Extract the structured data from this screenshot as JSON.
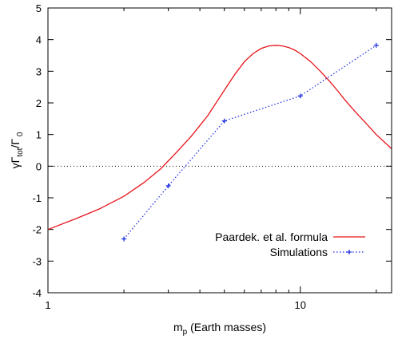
{
  "chart_data": {
    "type": "line",
    "title": "",
    "xlabel": {
      "main": "m",
      "sub": "p",
      "rest": " (Earth masses)"
    },
    "ylabel": {
      "prefix": "γΓ",
      "sub1": "tot",
      "mid": "/Γ",
      "sub2": " 0"
    },
    "x_scale": "log",
    "xlim": [
      1,
      23
    ],
    "ylim": [
      -4,
      5
    ],
    "x_ticks": [
      {
        "value": 1,
        "label": "1"
      },
      {
        "value": 10,
        "label": "10"
      }
    ],
    "y_ticks": [
      {
        "value": -4,
        "label": "-4"
      },
      {
        "value": -3,
        "label": "-3"
      },
      {
        "value": -2,
        "label": "-2"
      },
      {
        "value": -1,
        "label": "-1"
      },
      {
        "value": 0,
        "label": "0"
      },
      {
        "value": 1,
        "label": "1"
      },
      {
        "value": 2,
        "label": "2"
      },
      {
        "value": 3,
        "label": "3"
      },
      {
        "value": 4,
        "label": "4"
      },
      {
        "value": 5,
        "label": "5"
      }
    ],
    "zero_line": true,
    "grid": false,
    "legend_position": "bottom-right",
    "series": [
      {
        "name": "Paardek. et al. formula",
        "style": "solid",
        "color": "#e8141c",
        "x": [
          1.0,
          1.3,
          1.6,
          2.0,
          2.4,
          2.8,
          3.2,
          3.7,
          4.3,
          5.0,
          5.5,
          6.0,
          6.5,
          7.0,
          7.5,
          8.0,
          8.5,
          9.0,
          9.5,
          10.0,
          11.0,
          12.0,
          13.0,
          14.0,
          15.0,
          16.5,
          18.0,
          20.0,
          23.0
        ],
        "y": [
          -2.0,
          -1.65,
          -1.35,
          -0.95,
          -0.52,
          -0.08,
          0.4,
          0.95,
          1.6,
          2.4,
          2.9,
          3.3,
          3.56,
          3.72,
          3.8,
          3.82,
          3.8,
          3.75,
          3.67,
          3.56,
          3.3,
          3.0,
          2.7,
          2.4,
          2.1,
          1.72,
          1.4,
          1.0,
          0.55
        ]
      },
      {
        "name": "Simulations",
        "style": "dotted",
        "marker": "plus",
        "color": "#1426e0",
        "x": [
          2,
          3,
          5,
          10,
          20
        ],
        "y": [
          -2.3,
          -0.62,
          1.43,
          2.22,
          3.82
        ]
      }
    ]
  }
}
